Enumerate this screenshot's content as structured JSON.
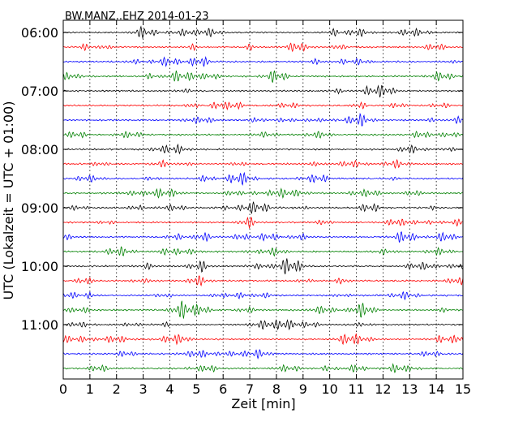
{
  "chart_data": {
    "type": "line",
    "title": "BW.MANZ..EHZ 2014-01-23",
    "xlabel": "Zeit  [min]",
    "ylabel": "UTC (Lokalzeit = UTC + 01:00)",
    "xlim": [
      0,
      15
    ],
    "x_ticks": [
      "0",
      "1",
      "2",
      "3",
      "4",
      "5",
      "6",
      "7",
      "8",
      "9",
      "10",
      "11",
      "12",
      "13",
      "14",
      "15"
    ],
    "y_tick_labels": [
      "06:00",
      "07:00",
      "08:00",
      "09:00",
      "10:00",
      "11:00"
    ],
    "grid": "vertical dotted",
    "trace_interval_minutes": 15,
    "trace_colors": [
      "#000000",
      "#ff0000",
      "#0000ff",
      "#008000"
    ],
    "series": [
      {
        "start": "06:00"
      },
      {
        "start": "06:15"
      },
      {
        "start": "06:30"
      },
      {
        "start": "06:45"
      },
      {
        "start": "07:00"
      },
      {
        "start": "07:15"
      },
      {
        "start": "07:30"
      },
      {
        "start": "07:45"
      },
      {
        "start": "08:00"
      },
      {
        "start": "08:15"
      },
      {
        "start": "08:30"
      },
      {
        "start": "08:45"
      },
      {
        "start": "09:00"
      },
      {
        "start": "09:15"
      },
      {
        "start": "09:30"
      },
      {
        "start": "09:45"
      },
      {
        "start": "10:00"
      },
      {
        "start": "10:15"
      },
      {
        "start": "10:30"
      },
      {
        "start": "10:45"
      },
      {
        "start": "11:00"
      },
      {
        "start": "11:15"
      },
      {
        "start": "11:30"
      },
      {
        "start": "11:45"
      }
    ]
  }
}
